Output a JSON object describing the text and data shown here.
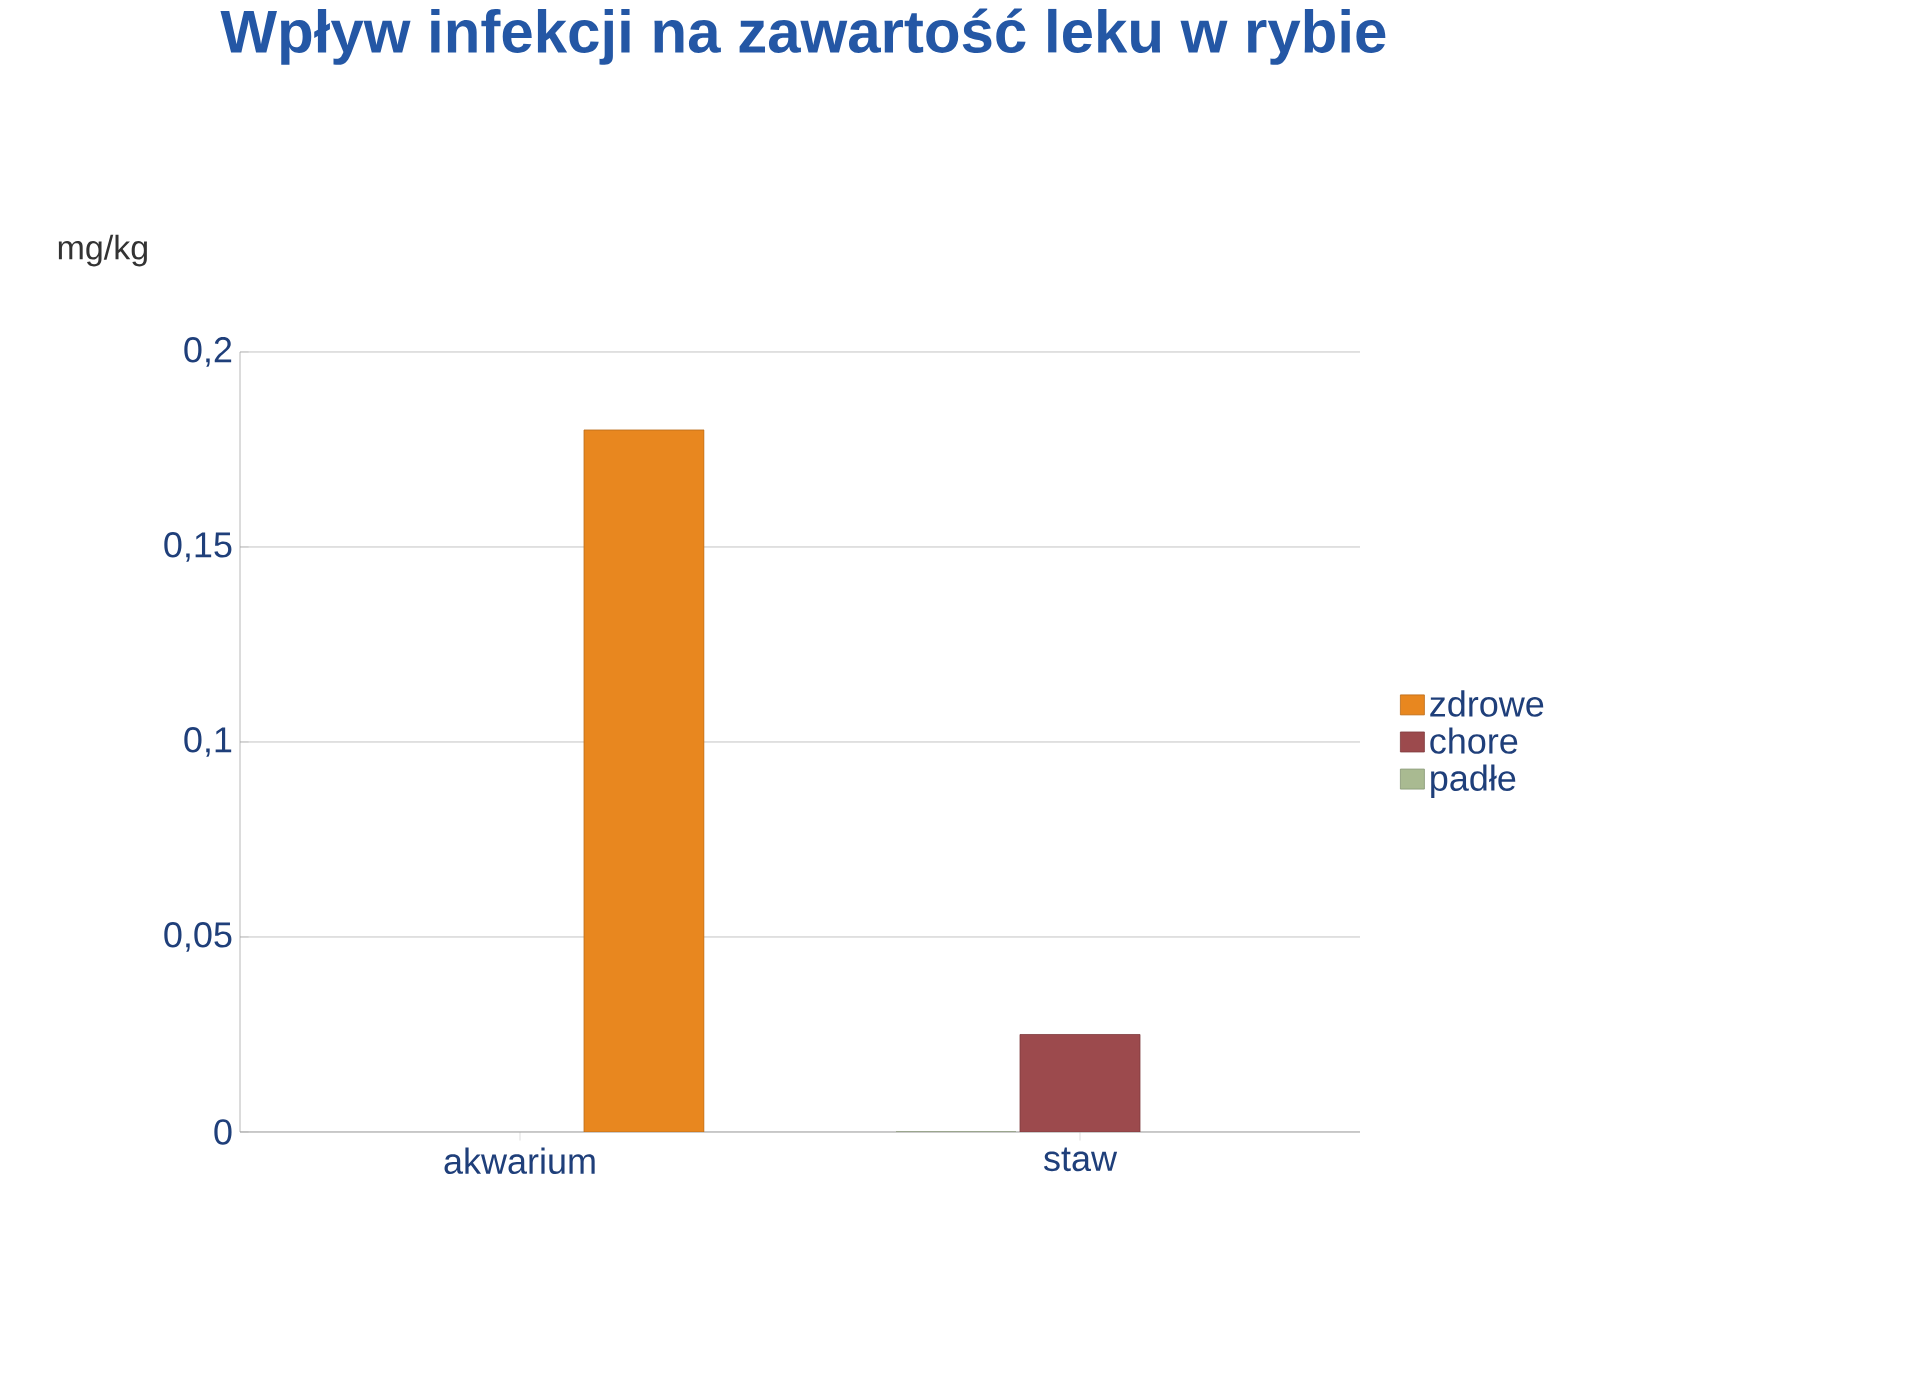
{
  "chart_data": {
    "type": "bar",
    "title": "Wpływ infekcji na zawartość leku w rybie",
    "ylabel": "mg/kg",
    "categories": [
      "akwarium",
      "staw"
    ],
    "series": [
      {
        "name": "padłe",
        "color": "#a9ba91",
        "values": [
          null,
          0
        ]
      },
      {
        "name": "chore",
        "color": "#9c4a4d",
        "values": [
          null,
          0.025
        ]
      },
      {
        "name": "zdrowe",
        "color": "#e8871f",
        "values": [
          0.18,
          null
        ]
      }
    ],
    "ylim": [
      0,
      0.2
    ],
    "yticks": [
      {
        "value": 0,
        "label": "0"
      },
      {
        "value": 0.05,
        "label": "0,05"
      },
      {
        "value": 0.1,
        "label": "0,1"
      },
      {
        "value": 0.15,
        "label": "0,15"
      },
      {
        "value": 0.2,
        "label": "0,2"
      }
    ],
    "grid": "y",
    "legend": "right"
  }
}
